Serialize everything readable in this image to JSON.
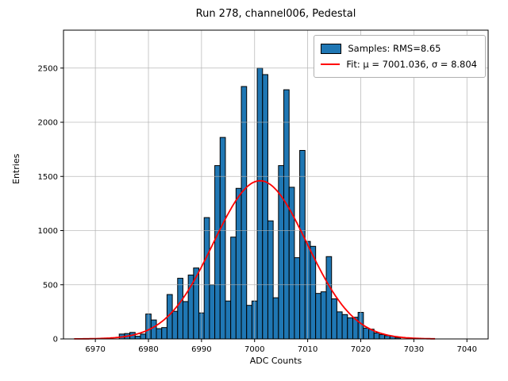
{
  "figure": {
    "title": "Run 278, channel006, Pedestal",
    "xlabel": "ADC Counts",
    "ylabel": "Entries"
  },
  "legend": {
    "samples_label": "Samples: RMS=8.65",
    "fit_label": "Fit: μ = 7001.036, σ = 8.804"
  },
  "chart_data": {
    "type": "bar",
    "subtype": "histogram-with-gaussian-fit",
    "title": "Run 278, channel006, Pedestal",
    "xlabel": "ADC Counts",
    "ylabel": "Entries",
    "xlim": [
      6964,
      7044
    ],
    "ylim": [
      0,
      2850
    ],
    "xticks": [
      6970,
      6980,
      6990,
      7000,
      7010,
      7020,
      7030,
      7040
    ],
    "yticks": [
      0,
      500,
      1000,
      1500,
      2000,
      2500
    ],
    "grid": true,
    "legend_position": "upper right",
    "bin_width": 1,
    "bar_color": "#1f77b4",
    "bar_edge_color": "#000000",
    "fit_color": "#ff0000",
    "categories": [
      6975,
      6976,
      6977,
      6978,
      6979,
      6980,
      6981,
      6982,
      6983,
      6984,
      6985,
      6986,
      6987,
      6988,
      6989,
      6990,
      6991,
      6992,
      6993,
      6994,
      6995,
      6996,
      6997,
      6998,
      6999,
      7000,
      7001,
      7002,
      7003,
      7004,
      7005,
      7006,
      7007,
      7008,
      7009,
      7010,
      7011,
      7012,
      7013,
      7014,
      7015,
      7016,
      7017,
      7018,
      7019,
      7020,
      7021,
      7022,
      7023,
      7024,
      7025,
      7026,
      7027
    ],
    "values": [
      45,
      50,
      60,
      25,
      45,
      230,
      175,
      95,
      105,
      410,
      255,
      560,
      345,
      590,
      655,
      240,
      1120,
      500,
      1600,
      1860,
      350,
      940,
      1390,
      2330,
      310,
      350,
      2500,
      2440,
      1090,
      380,
      1600,
      2300,
      1400,
      750,
      1740,
      900,
      855,
      420,
      435,
      760,
      370,
      250,
      225,
      195,
      200,
      245,
      100,
      90,
      55,
      40,
      30,
      25,
      10
    ],
    "series": [
      {
        "name": "Samples: RMS=8.65",
        "type": "bar"
      },
      {
        "name": "Fit: μ = 7001.036, σ = 8.804",
        "type": "line"
      }
    ],
    "fit": {
      "shape": "gaussian",
      "mu": 7001.036,
      "sigma": 8.804,
      "amplitude": 1460,
      "x_start": 6966,
      "x_end": 7034
    },
    "stats": {
      "rms": 8.65,
      "fit_mu": 7001.036,
      "fit_sigma": 8.804
    }
  }
}
